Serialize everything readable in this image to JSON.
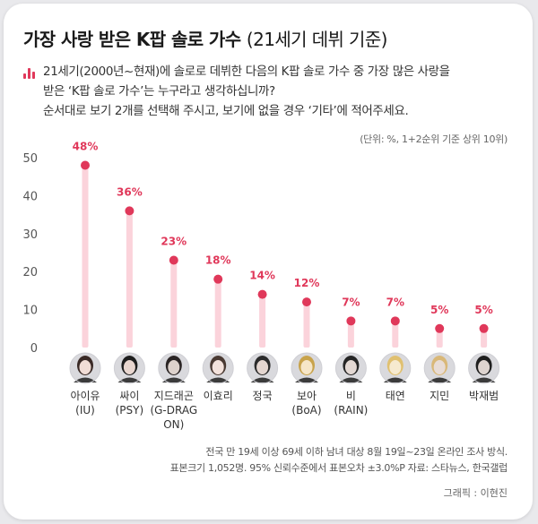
{
  "header": {
    "title_main": "가장 사랑 받은 K팝 솔로 가수",
    "title_sub": "(21세기 데뷔 기준)"
  },
  "question": {
    "icon": "bar-chart-icon",
    "lines": [
      "21세기(2000년~현재)에 솔로로 데뷔한 다음의 K팝 솔로 가수 중 가장 많은 사랑을",
      "받은 ‘K팝 솔로 가수’는 누구라고 생각하십니까?",
      "순서대로 보기 2개를 선택해 주시고, 보기에 없을 경우 ‘기타’에 적어주세요."
    ]
  },
  "unit_note": "(단위: %, 1+2순위 기준 상위 10위)",
  "colors": {
    "accent": "#e0385a",
    "stem": "#fbd3db",
    "axis_text": "#555555",
    "grid": "#eeeeee"
  },
  "chart_data": {
    "type": "bar",
    "categories": [
      "아이유 (IU)",
      "싸이 (PSY)",
      "지드래곤 (G-DRAGON)",
      "이효리",
      "정국",
      "보아 (BoA)",
      "비 (RAIN)",
      "태연",
      "지민",
      "박재범"
    ],
    "category_lines": [
      [
        "아이유",
        "(IU)"
      ],
      [
        "싸이",
        "(PSY)"
      ],
      [
        "지드래곤",
        "(G-DRAG",
        "ON)"
      ],
      [
        "이효리"
      ],
      [
        "정국"
      ],
      [
        "보아",
        "(BoA)"
      ],
      [
        "비",
        "(RAIN)"
      ],
      [
        "태연"
      ],
      [
        "지민"
      ],
      [
        "박재범"
      ]
    ],
    "values": [
      48,
      36,
      23,
      18,
      14,
      12,
      7,
      7,
      5,
      5
    ],
    "value_labels": [
      "48%",
      "36%",
      "23%",
      "18%",
      "14%",
      "12%",
      "7%",
      "7%",
      "5%",
      "5%"
    ],
    "yticks": [
      0,
      10,
      20,
      30,
      40,
      50
    ],
    "ylim": [
      0,
      50
    ],
    "grid": false,
    "style": "lollipop"
  },
  "footer": {
    "lines": [
      "전국 만 19세 이상 69세 이하 남녀 대상 8월 19일~23일 온라인 조사 방식.",
      "표본크기 1,052명. 95% 신뢰수준에서 표본오차 ±3.0%P 자료: 스타뉴스, 한국갤럽"
    ],
    "credit": "그래픽 : 이현진"
  }
}
